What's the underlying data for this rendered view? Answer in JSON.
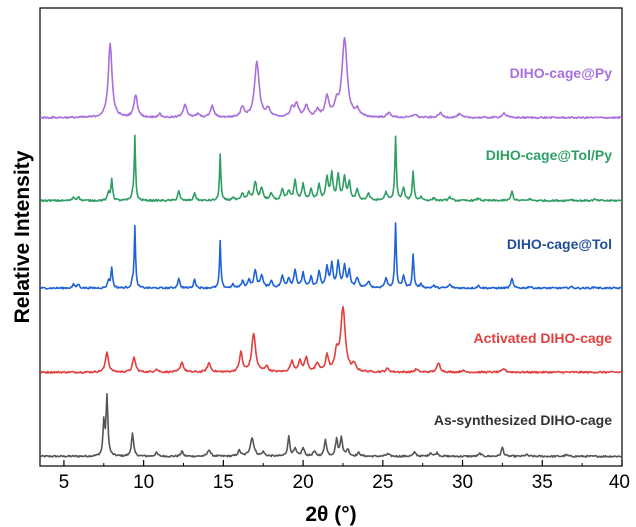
{
  "chart_data": {
    "type": "line",
    "title": "",
    "xlabel": "2θ (°)",
    "ylabel": "Relative Intensity",
    "xlim": [
      3.5,
      40
    ],
    "x_ticks": [
      5,
      10,
      15,
      20,
      25,
      30,
      35,
      40
    ],
    "y_ticks_labeled": false,
    "grid": false,
    "legend": "labels placed beside each trace",
    "background_noise": 0.15,
    "series": [
      {
        "name": "As-synthesized DIHO-cage",
        "color": "#555555",
        "offset": 0,
        "scale": 1.0,
        "baseline": 0.05,
        "peaks": [
          [
            7.5,
            2.9,
            0.06
          ],
          [
            7.7,
            5.2,
            0.07
          ],
          [
            9.3,
            2.0,
            0.08
          ],
          [
            10.8,
            0.3,
            0.1
          ],
          [
            12.4,
            0.45,
            0.08
          ],
          [
            14.1,
            0.6,
            0.1
          ],
          [
            16.0,
            0.5,
            0.1
          ],
          [
            16.8,
            1.6,
            0.14
          ],
          [
            17.5,
            0.35,
            0.1
          ],
          [
            19.1,
            1.7,
            0.08
          ],
          [
            19.5,
            0.6,
            0.1
          ],
          [
            20.0,
            0.7,
            0.1
          ],
          [
            20.7,
            0.4,
            0.1
          ],
          [
            21.4,
            1.5,
            0.08
          ],
          [
            22.1,
            1.5,
            0.08
          ],
          [
            22.4,
            1.7,
            0.08
          ],
          [
            22.8,
            0.6,
            0.1
          ],
          [
            23.5,
            0.3,
            0.1
          ],
          [
            25.3,
            0.2,
            0.12
          ],
          [
            27.0,
            0.35,
            0.1
          ],
          [
            28.0,
            0.3,
            0.1
          ],
          [
            28.4,
            0.3,
            0.1
          ],
          [
            31.1,
            0.25,
            0.1
          ],
          [
            32.5,
            0.8,
            0.08
          ],
          [
            34.0,
            0.15,
            0.1
          ],
          [
            36.5,
            0.12,
            0.1
          ]
        ]
      },
      {
        "name": "Activated DIHO-cage",
        "color": "#e23e3e",
        "offset": 7.4,
        "scale": 1.0,
        "baseline": 0.05,
        "peaks": [
          [
            7.7,
            1.8,
            0.11
          ],
          [
            9.4,
            1.3,
            0.11
          ],
          [
            10.8,
            0.25,
            0.12
          ],
          [
            12.4,
            0.9,
            0.11
          ],
          [
            14.1,
            0.8,
            0.12
          ],
          [
            16.1,
            1.7,
            0.11
          ],
          [
            16.9,
            3.4,
            0.14
          ],
          [
            17.7,
            0.5,
            0.12
          ],
          [
            19.3,
            0.9,
            0.12
          ],
          [
            19.8,
            0.9,
            0.12
          ],
          [
            20.2,
            1.2,
            0.12
          ],
          [
            20.9,
            0.7,
            0.12
          ],
          [
            21.5,
            1.4,
            0.11
          ],
          [
            22.1,
            1.6,
            0.12
          ],
          [
            22.5,
            5.6,
            0.17
          ],
          [
            23.2,
            0.6,
            0.12
          ],
          [
            25.3,
            0.3,
            0.12
          ],
          [
            27.1,
            0.25,
            0.12
          ],
          [
            28.5,
            0.8,
            0.12
          ],
          [
            30.0,
            0.15,
            0.12
          ],
          [
            32.6,
            0.3,
            0.12
          ]
        ]
      },
      {
        "name": "DIHO-cage@Tol",
        "color": "#1f63d6",
        "offset": 14.8,
        "scale": 1.0,
        "baseline": 0.05,
        "peaks": [
          [
            5.6,
            0.3,
            0.08
          ],
          [
            5.9,
            0.35,
            0.08
          ],
          [
            7.8,
            0.7,
            0.07
          ],
          [
            8.0,
            1.8,
            0.06
          ],
          [
            9.3,
            0.5,
            0.06
          ],
          [
            9.45,
            5.4,
            0.05
          ],
          [
            12.2,
            0.9,
            0.07
          ],
          [
            13.2,
            0.8,
            0.07
          ],
          [
            14.8,
            4.1,
            0.05
          ],
          [
            15.6,
            0.3,
            0.08
          ],
          [
            16.2,
            0.6,
            0.09
          ],
          [
            16.6,
            0.7,
            0.09
          ],
          [
            17.0,
            1.5,
            0.1
          ],
          [
            17.4,
            1.1,
            0.1
          ],
          [
            18.0,
            0.6,
            0.1
          ],
          [
            18.7,
            1.0,
            0.1
          ],
          [
            19.1,
            0.8,
            0.1
          ],
          [
            19.5,
            1.6,
            0.09
          ],
          [
            20.0,
            1.3,
            0.09
          ],
          [
            20.5,
            0.9,
            0.09
          ],
          [
            21.0,
            1.4,
            0.09
          ],
          [
            21.5,
            1.8,
            0.09
          ],
          [
            21.8,
            2.1,
            0.08
          ],
          [
            22.2,
            2.3,
            0.09
          ],
          [
            22.6,
            1.9,
            0.09
          ],
          [
            22.9,
            1.5,
            0.08
          ],
          [
            23.4,
            0.9,
            0.1
          ],
          [
            24.1,
            0.6,
            0.1
          ],
          [
            25.2,
            0.8,
            0.1
          ],
          [
            25.8,
            5.6,
            0.055
          ],
          [
            26.3,
            1.1,
            0.08
          ],
          [
            26.9,
            2.9,
            0.06
          ],
          [
            27.4,
            0.3,
            0.1
          ],
          [
            28.2,
            0.2,
            0.1
          ],
          [
            29.2,
            0.3,
            0.1
          ],
          [
            31.0,
            0.2,
            0.1
          ],
          [
            33.1,
            0.9,
            0.07
          ],
          [
            34.2,
            0.15,
            0.1
          ],
          [
            36.8,
            0.12,
            0.1
          ],
          [
            38.3,
            0.1,
            0.1
          ]
        ]
      },
      {
        "name": "DIHO-cage@Tol/Py",
        "color": "#2e9e63",
        "offset": 22.5,
        "scale": 1.0,
        "baseline": 0.05,
        "peaks": [
          [
            5.6,
            0.3,
            0.08
          ],
          [
            5.9,
            0.35,
            0.08
          ],
          [
            7.8,
            0.7,
            0.07
          ],
          [
            8.0,
            1.9,
            0.06
          ],
          [
            9.3,
            0.5,
            0.06
          ],
          [
            9.45,
            5.6,
            0.05
          ],
          [
            12.2,
            0.9,
            0.07
          ],
          [
            13.2,
            0.7,
            0.07
          ],
          [
            14.8,
            4.1,
            0.05
          ],
          [
            15.6,
            0.3,
            0.08
          ],
          [
            16.2,
            0.6,
            0.09
          ],
          [
            16.6,
            0.7,
            0.09
          ],
          [
            17.0,
            1.6,
            0.1
          ],
          [
            17.4,
            1.1,
            0.1
          ],
          [
            18.0,
            0.6,
            0.1
          ],
          [
            18.7,
            1.0,
            0.1
          ],
          [
            19.1,
            0.8,
            0.1
          ],
          [
            19.5,
            1.7,
            0.09
          ],
          [
            20.0,
            1.4,
            0.09
          ],
          [
            20.5,
            0.9,
            0.09
          ],
          [
            21.0,
            1.4,
            0.09
          ],
          [
            21.5,
            2.0,
            0.09
          ],
          [
            21.8,
            2.3,
            0.08
          ],
          [
            22.2,
            2.2,
            0.09
          ],
          [
            22.6,
            2.0,
            0.09
          ],
          [
            22.9,
            1.6,
            0.08
          ],
          [
            23.4,
            0.9,
            0.1
          ],
          [
            24.1,
            0.6,
            0.1
          ],
          [
            25.2,
            0.7,
            0.1
          ],
          [
            25.8,
            5.6,
            0.055
          ],
          [
            26.3,
            1.1,
            0.08
          ],
          [
            26.9,
            2.6,
            0.06
          ],
          [
            27.4,
            0.3,
            0.1
          ],
          [
            28.2,
            0.2,
            0.1
          ],
          [
            29.2,
            0.3,
            0.1
          ],
          [
            31.0,
            0.2,
            0.1
          ],
          [
            33.1,
            0.9,
            0.07
          ],
          [
            34.2,
            0.15,
            0.1
          ],
          [
            36.8,
            0.12,
            0.1
          ],
          [
            38.3,
            0.1,
            0.1
          ]
        ]
      },
      {
        "name": "DIHO-cage@Py",
        "color": "#a86fdd",
        "offset": 29.8,
        "scale": 1.0,
        "baseline": 0.05,
        "peaks": [
          [
            7.9,
            6.5,
            0.14
          ],
          [
            9.5,
            2.0,
            0.13
          ],
          [
            11.0,
            0.3,
            0.12
          ],
          [
            12.6,
            1.2,
            0.13
          ],
          [
            13.4,
            0.3,
            0.12
          ],
          [
            14.3,
            1.0,
            0.13
          ],
          [
            16.2,
            0.9,
            0.13
          ],
          [
            17.1,
            4.9,
            0.17
          ],
          [
            17.8,
            0.7,
            0.14
          ],
          [
            19.3,
            0.8,
            0.14
          ],
          [
            19.6,
            1.1,
            0.14
          ],
          [
            20.2,
            1.0,
            0.14
          ],
          [
            20.9,
            0.6,
            0.14
          ],
          [
            21.5,
            1.8,
            0.14
          ],
          [
            22.1,
            1.0,
            0.14
          ],
          [
            22.6,
            6.9,
            0.19
          ],
          [
            23.4,
            0.6,
            0.14
          ],
          [
            25.4,
            0.4,
            0.14
          ],
          [
            27.0,
            0.3,
            0.14
          ],
          [
            28.6,
            0.4,
            0.14
          ],
          [
            29.8,
            0.3,
            0.14
          ],
          [
            32.6,
            0.4,
            0.14
          ]
        ]
      }
    ]
  }
}
